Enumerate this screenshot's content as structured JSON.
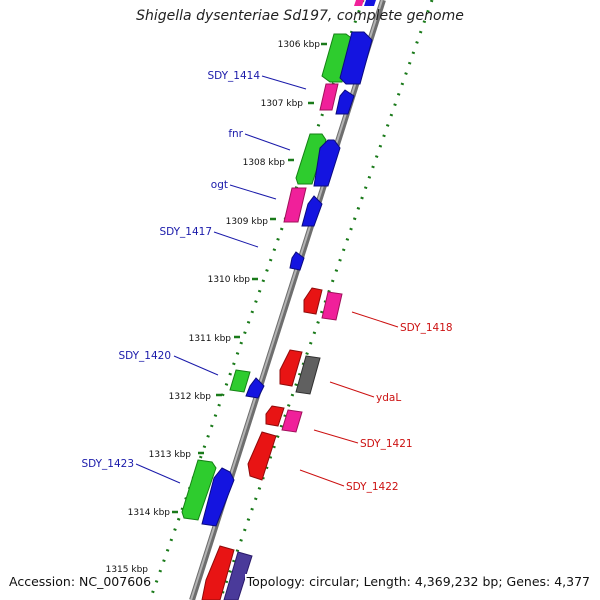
{
  "title": "Shigella dysenteriae Sd197, complete genome",
  "accession": "Accession: NC_007606",
  "topology": "Topology: circular; Length: 4,369,232 bp; Genes: 4,377",
  "colors": {
    "backbone": "#8c8c8c",
    "ticks": "#1a7a1a",
    "forward_label": "#1a1aaa",
    "reverse_label": "#cc1111",
    "blue": "#1414e0",
    "green": "#2ecc2e",
    "magenta": "#f0209a",
    "red": "#e81414",
    "gray": "#606060",
    "purple": "#4a3a9a"
  },
  "kbp_labels": [
    "1306 kbp",
    "1307 kbp",
    "1308 kbp",
    "1309 kbp",
    "1310 kbp",
    "1311 kbp",
    "1312 kbp",
    "1313 kbp",
    "1314 kbp",
    "1315 kbp"
  ],
  "forward_gene_labels": [
    "SDY_1414",
    "fnr",
    "ogt",
    "SDY_1417",
    "SDY_1420",
    "SDY_1423"
  ],
  "reverse_gene_labels": [
    "SDY_1418",
    "ydaL",
    "SDY_1421",
    "SDY_1422"
  ]
}
